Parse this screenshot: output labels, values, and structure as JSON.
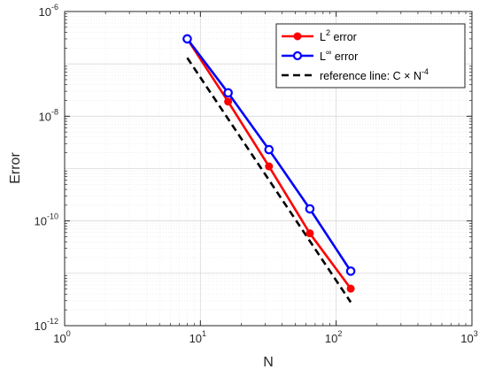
{
  "chart_data": {
    "type": "line",
    "x_scale": "log",
    "y_scale": "log",
    "xlabel": "N",
    "ylabel": "Error",
    "xlim": [
      1,
      1000
    ],
    "ylim": [
      1e-12,
      1e-06
    ],
    "x_ticks": [
      {
        "value": 1,
        "base": "10",
        "exp": "0"
      },
      {
        "value": 10,
        "base": "10",
        "exp": "1"
      },
      {
        "value": 100,
        "base": "10",
        "exp": "2"
      },
      {
        "value": 1000,
        "base": "10",
        "exp": "3"
      }
    ],
    "y_ticks": [
      {
        "value": 1e-12,
        "base": "10",
        "exp": "-12"
      },
      {
        "value": 1e-10,
        "base": "10",
        "exp": "-10"
      },
      {
        "value": 1e-08,
        "base": "10",
        "exp": "-8"
      },
      {
        "value": 1e-06,
        "base": "10",
        "exp": "-6"
      }
    ],
    "grid": true,
    "minor_grid": true,
    "legend_position": "top-right",
    "series": [
      {
        "name_main": "L",
        "name_sup": "2",
        "name_rest": " error",
        "color": "#ff0000",
        "marker": "filled-circle",
        "line": "solid",
        "x": [
          8,
          16,
          32,
          64,
          128
        ],
        "y": [
          3e-07,
          1.9e-08,
          1.1e-09,
          5.8e-11,
          5.1e-12
        ]
      },
      {
        "name_main": "L",
        "name_sup": "∞",
        "name_rest": " error",
        "color": "#0000ff",
        "marker": "open-circle",
        "line": "solid",
        "x": [
          8,
          16,
          32,
          64,
          128
        ],
        "y": [
          3e-07,
          2.8e-08,
          2.3e-09,
          1.7e-10,
          1.1e-11
        ]
      },
      {
        "name_main": "reference line: C × N",
        "name_sup": "-4",
        "name_rest": "",
        "color": "#000000",
        "marker": "none",
        "line": "dashed",
        "x": [
          8,
          128
        ],
        "y": [
          1.3e-07,
          2.8e-12
        ]
      }
    ]
  }
}
